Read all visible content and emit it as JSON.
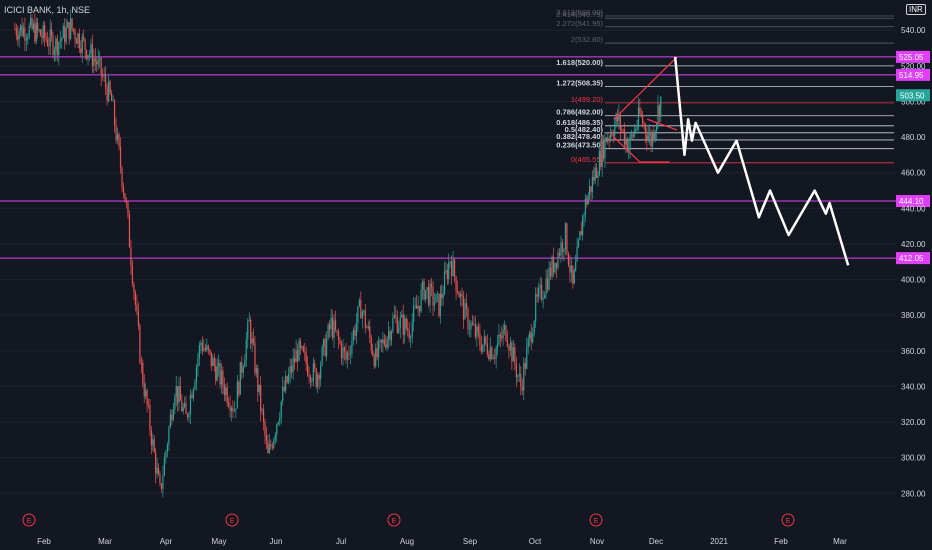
{
  "header": {
    "symbol": "ICICI BANK, 1h, NSE",
    "currency": "INR"
  },
  "colors": {
    "background": "#131722",
    "up": "#26a69a",
    "down": "#ef5350",
    "magenta": "#e040fb",
    "fib": "#d1d4dc",
    "red": "#f23645",
    "projection": "#ffffff",
    "price_tag": "#26a69a"
  },
  "chart_data": {
    "type": "candlestick",
    "ylim": [
      265,
      548
    ],
    "y_ticks": [
      540,
      520,
      500,
      480,
      460,
      440,
      420,
      400,
      380,
      360,
      340,
      320,
      300,
      280
    ],
    "y_tick_labels": [
      "540.00",
      "520.00",
      "500.00",
      "480.00",
      "460.00",
      "440.00",
      "420.00",
      "400.00",
      "380.00",
      "360.00",
      "340.00",
      "320.00",
      "300.00",
      "280.00"
    ],
    "x_labels": [
      {
        "label": "Feb",
        "x": 1.0
      },
      {
        "label": "Mar",
        "x": 2.0
      },
      {
        "label": "Apr",
        "x": 3.0
      },
      {
        "label": "May",
        "x": 4.0
      },
      {
        "label": "Jun",
        "x": 5.0
      },
      {
        "label": "Jul",
        "x": 6.0
      },
      {
        "label": "Aug",
        "x": 7.0
      },
      {
        "label": "Sep",
        "x": 8.0
      },
      {
        "label": "Oct",
        "x": 9.0
      },
      {
        "label": "Nov",
        "x": 10.0
      },
      {
        "label": "Dec",
        "x": 11.0
      },
      {
        "label": "2021",
        "x": 12.0
      },
      {
        "label": "Feb",
        "x": 13.0
      },
      {
        "label": "Mar",
        "x": 14.0
      }
    ],
    "price_path": [
      [
        0.4,
        541
      ],
      [
        0.9,
        540
      ],
      [
        1.5,
        532
      ],
      [
        1.9,
        542
      ],
      [
        2.6,
        522
      ],
      [
        3.0,
        500
      ],
      [
        3.4,
        440
      ],
      [
        3.8,
        350
      ],
      [
        4.3,
        280
      ],
      [
        4.7,
        340
      ],
      [
        5.0,
        322
      ],
      [
        5.4,
        365
      ],
      [
        5.8,
        350
      ],
      [
        6.3,
        328
      ],
      [
        6.7,
        375
      ],
      [
        7.2,
        300
      ],
      [
        7.6,
        335
      ],
      [
        8.0,
        360
      ],
      [
        8.5,
        345
      ],
      [
        8.9,
        375
      ],
      [
        9.3,
        355
      ],
      [
        9.7,
        385
      ],
      [
        10.1,
        355
      ],
      [
        10.6,
        378
      ],
      [
        11.0,
        372
      ],
      [
        11.4,
        395
      ],
      [
        11.8,
        385
      ],
      [
        12.1,
        412
      ],
      [
        12.5,
        380
      ],
      [
        12.9,
        365
      ],
      [
        13.3,
        360
      ],
      [
        13.6,
        372
      ],
      [
        14.0,
        340
      ],
      [
        14.4,
        385
      ],
      [
        14.8,
        405
      ],
      [
        15.2,
        425
      ],
      [
        15.4,
        395
      ],
      [
        15.7,
        440
      ],
      [
        16.0,
        460
      ],
      [
        16.3,
        480
      ],
      [
        16.6,
        490
      ],
      [
        16.9,
        475
      ],
      [
        17.2,
        492
      ],
      [
        17.5,
        478
      ],
      [
        17.8,
        505
      ]
    ],
    "horizontal_levels": [
      {
        "value": 525.05,
        "label": "525.05"
      },
      {
        "value": 514.95,
        "label": "514.95"
      },
      {
        "value": 444.1,
        "label": "444.10"
      },
      {
        "value": 412.05,
        "label": "412.05"
      }
    ],
    "last_price": {
      "value": 503.5,
      "label": "503.50"
    },
    "fib_levels": [
      {
        "value": 548.0,
        "label": "3.618(560.00)"
      },
      {
        "value": 546.75,
        "label": "2.414(546.75)"
      },
      {
        "value": 541.95,
        "label": "2.272(541.95)"
      },
      {
        "value": 532.8,
        "label": "2(532.80)"
      },
      {
        "value": 520.0,
        "label": "1.618(520.00)"
      },
      {
        "value": 508.35,
        "label": "1.272(508.35)"
      },
      {
        "value": 499.2,
        "label": "1(499.20)"
      },
      {
        "value": 492.0,
        "label": "0.786(492.00)"
      },
      {
        "value": 486.35,
        "label": "0.618(486.35)"
      },
      {
        "value": 482.4,
        "label": "0.5(482.40)"
      },
      {
        "value": 478.4,
        "label": "0.382(478.40)"
      },
      {
        "value": 473.5,
        "label": "0.236(473.50)"
      },
      {
        "value": 465.55,
        "label": "0(465.55)"
      }
    ],
    "red_lines": [
      [
        [
          16.5,
          490
        ],
        [
          18.2,
          525
        ]
      ],
      [
        [
          16.5,
          480
        ],
        [
          17.2,
          466
        ]
      ],
      [
        [
          17.2,
          466
        ],
        [
          18.0,
          466
        ]
      ],
      [
        [
          17.4,
          490
        ],
        [
          18.2,
          484
        ]
      ]
    ],
    "projection_path": [
      [
        18.15,
        525
      ],
      [
        18.4,
        470
      ],
      [
        18.5,
        490
      ],
      [
        18.6,
        478
      ],
      [
        18.7,
        488
      ],
      [
        19.3,
        460
      ],
      [
        19.8,
        478
      ],
      [
        20.4,
        435
      ],
      [
        20.7,
        450
      ],
      [
        21.2,
        425
      ],
      [
        21.9,
        450
      ],
      [
        22.2,
        437
      ],
      [
        22.3,
        443
      ],
      [
        22.8,
        408
      ]
    ],
    "earnings_markers": [
      0.75,
      6.0,
      10.5,
      15.9,
      20.9
    ]
  }
}
